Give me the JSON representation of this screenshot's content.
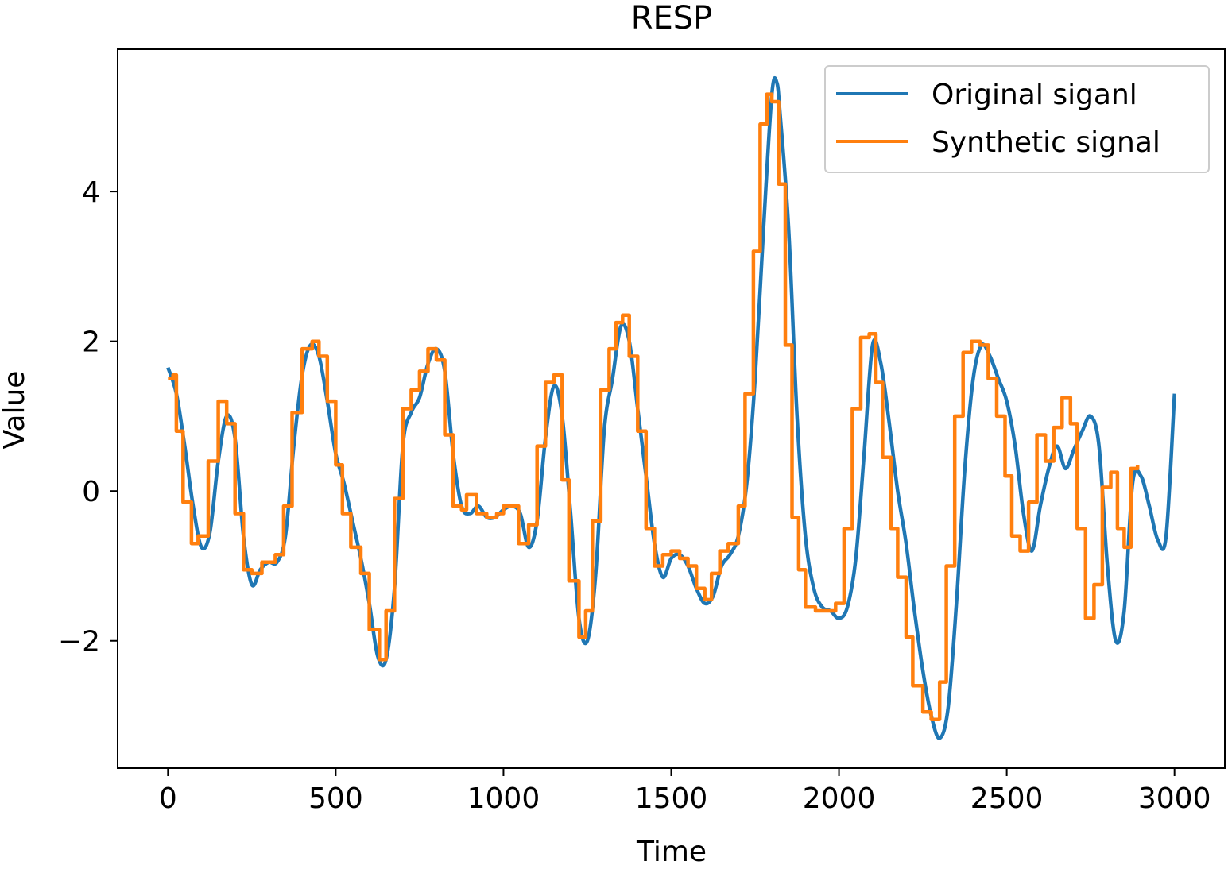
{
  "chart_data": {
    "type": "line",
    "title": "RESP",
    "xlabel": "Time",
    "ylabel": "Value",
    "xlim": [
      -150,
      3150
    ],
    "ylim": [
      -3.7,
      5.9
    ],
    "xticks": [
      0,
      500,
      1000,
      1500,
      2000,
      2500,
      3000
    ],
    "yticks": [
      -2,
      0,
      2,
      4
    ],
    "grid": false,
    "legend": "top-right",
    "series": [
      {
        "name": "Original siganl",
        "color": "#1f77b4",
        "style": "smooth",
        "points": [
          [
            0,
            1.65
          ],
          [
            25,
            1.3
          ],
          [
            50,
            0.6
          ],
          [
            75,
            -0.2
          ],
          [
            100,
            -0.75
          ],
          [
            125,
            -0.55
          ],
          [
            150,
            0.4
          ],
          [
            175,
            1.0
          ],
          [
            200,
            0.7
          ],
          [
            225,
            -0.6
          ],
          [
            250,
            -1.25
          ],
          [
            275,
            -1.05
          ],
          [
            300,
            -0.95
          ],
          [
            325,
            -0.95
          ],
          [
            350,
            -0.6
          ],
          [
            375,
            0.6
          ],
          [
            400,
            1.55
          ],
          [
            425,
            1.95
          ],
          [
            450,
            1.8
          ],
          [
            475,
            1.2
          ],
          [
            500,
            0.5
          ],
          [
            525,
            0.1
          ],
          [
            550,
            -0.4
          ],
          [
            575,
            -0.9
          ],
          [
            600,
            -1.5
          ],
          [
            625,
            -2.2
          ],
          [
            650,
            -2.25
          ],
          [
            675,
            -1.3
          ],
          [
            700,
            0.6
          ],
          [
            725,
            1.05
          ],
          [
            750,
            1.25
          ],
          [
            775,
            1.7
          ],
          [
            800,
            1.9
          ],
          [
            825,
            1.6
          ],
          [
            850,
            0.5
          ],
          [
            875,
            -0.2
          ],
          [
            900,
            -0.3
          ],
          [
            925,
            -0.2
          ],
          [
            950,
            -0.35
          ],
          [
            975,
            -0.35
          ],
          [
            1000,
            -0.25
          ],
          [
            1025,
            -0.2
          ],
          [
            1050,
            -0.3
          ],
          [
            1075,
            -0.75
          ],
          [
            1100,
            -0.4
          ],
          [
            1125,
            0.7
          ],
          [
            1150,
            1.4
          ],
          [
            1175,
            1.0
          ],
          [
            1200,
            -0.3
          ],
          [
            1225,
            -1.7
          ],
          [
            1250,
            -2.0
          ],
          [
            1275,
            -1.1
          ],
          [
            1300,
            0.8
          ],
          [
            1325,
            1.5
          ],
          [
            1350,
            2.2
          ],
          [
            1375,
            2.0
          ],
          [
            1400,
            1.1
          ],
          [
            1425,
            0.2
          ],
          [
            1450,
            -0.7
          ],
          [
            1475,
            -1.15
          ],
          [
            1500,
            -0.9
          ],
          [
            1525,
            -0.85
          ],
          [
            1550,
            -1.0
          ],
          [
            1575,
            -1.3
          ],
          [
            1600,
            -1.5
          ],
          [
            1625,
            -1.4
          ],
          [
            1650,
            -1.0
          ],
          [
            1675,
            -0.85
          ],
          [
            1700,
            -0.6
          ],
          [
            1725,
            0.1
          ],
          [
            1750,
            1.5
          ],
          [
            1775,
            3.5
          ],
          [
            1800,
            5.3
          ],
          [
            1815,
            5.45
          ],
          [
            1825,
            5.0
          ],
          [
            1850,
            3.5
          ],
          [
            1875,
            1.0
          ],
          [
            1900,
            -0.6
          ],
          [
            1925,
            -1.3
          ],
          [
            1950,
            -1.55
          ],
          [
            1975,
            -1.6
          ],
          [
            2000,
            -1.7
          ],
          [
            2025,
            -1.55
          ],
          [
            2050,
            -0.9
          ],
          [
            2075,
            0.5
          ],
          [
            2100,
            1.95
          ],
          [
            2125,
            1.7
          ],
          [
            2150,
            0.9
          ],
          [
            2175,
            0.0
          ],
          [
            2200,
            -0.7
          ],
          [
            2225,
            -1.6
          ],
          [
            2250,
            -2.4
          ],
          [
            2275,
            -3.0
          ],
          [
            2300,
            -3.3
          ],
          [
            2325,
            -2.9
          ],
          [
            2350,
            -1.5
          ],
          [
            2375,
            0.3
          ],
          [
            2400,
            1.5
          ],
          [
            2425,
            1.95
          ],
          [
            2450,
            1.8
          ],
          [
            2475,
            1.5
          ],
          [
            2500,
            1.2
          ],
          [
            2525,
            0.6
          ],
          [
            2550,
            -0.3
          ],
          [
            2575,
            -0.8
          ],
          [
            2600,
            -0.2
          ],
          [
            2625,
            0.3
          ],
          [
            2650,
            0.6
          ],
          [
            2675,
            0.3
          ],
          [
            2700,
            0.55
          ],
          [
            2725,
            0.8
          ],
          [
            2750,
            1.0
          ],
          [
            2775,
            0.6
          ],
          [
            2800,
            -1.0
          ],
          [
            2825,
            -2.0
          ],
          [
            2850,
            -1.6
          ],
          [
            2875,
            0.1
          ],
          [
            2900,
            0.2
          ],
          [
            2925,
            -0.2
          ],
          [
            2950,
            -0.65
          ],
          [
            2975,
            -0.6
          ],
          [
            3000,
            1.3
          ]
        ]
      },
      {
        "name": "Synthetic signal",
        "color": "#ff7f0e",
        "style": "step",
        "points": [
          [
            0,
            1.5
          ],
          [
            15,
            1.55
          ],
          [
            25,
            0.8
          ],
          [
            45,
            -0.15
          ],
          [
            70,
            -0.7
          ],
          [
            90,
            -0.6
          ],
          [
            120,
            0.4
          ],
          [
            150,
            1.2
          ],
          [
            175,
            0.9
          ],
          [
            200,
            -0.3
          ],
          [
            225,
            -1.05
          ],
          [
            250,
            -1.1
          ],
          [
            280,
            -0.95
          ],
          [
            320,
            -0.85
          ],
          [
            345,
            -0.2
          ],
          [
            370,
            1.05
          ],
          [
            400,
            1.9
          ],
          [
            430,
            2.0
          ],
          [
            450,
            1.8
          ],
          [
            475,
            1.2
          ],
          [
            500,
            0.35
          ],
          [
            520,
            -0.3
          ],
          [
            545,
            -0.75
          ],
          [
            575,
            -1.1
          ],
          [
            600,
            -1.85
          ],
          [
            630,
            -2.25
          ],
          [
            650,
            -1.6
          ],
          [
            675,
            -0.1
          ],
          [
            700,
            1.1
          ],
          [
            725,
            1.35
          ],
          [
            750,
            1.6
          ],
          [
            775,
            1.9
          ],
          [
            800,
            1.75
          ],
          [
            825,
            0.75
          ],
          [
            850,
            -0.2
          ],
          [
            875,
            -0.25
          ],
          [
            890,
            -0.05
          ],
          [
            920,
            -0.3
          ],
          [
            950,
            -0.35
          ],
          [
            980,
            -0.3
          ],
          [
            1000,
            -0.2
          ],
          [
            1030,
            -0.2
          ],
          [
            1045,
            -0.7
          ],
          [
            1075,
            -0.45
          ],
          [
            1100,
            0.6
          ],
          [
            1125,
            1.45
          ],
          [
            1150,
            1.55
          ],
          [
            1175,
            0.15
          ],
          [
            1195,
            -1.2
          ],
          [
            1225,
            -1.95
          ],
          [
            1245,
            -1.6
          ],
          [
            1265,
            -0.4
          ],
          [
            1290,
            1.35
          ],
          [
            1315,
            1.9
          ],
          [
            1335,
            2.25
          ],
          [
            1355,
            2.35
          ],
          [
            1375,
            1.8
          ],
          [
            1400,
            0.8
          ],
          [
            1425,
            -0.5
          ],
          [
            1450,
            -1.0
          ],
          [
            1475,
            -0.85
          ],
          [
            1500,
            -0.8
          ],
          [
            1525,
            -0.9
          ],
          [
            1550,
            -1.0
          ],
          [
            1575,
            -1.3
          ],
          [
            1600,
            -1.45
          ],
          [
            1620,
            -1.1
          ],
          [
            1645,
            -0.8
          ],
          [
            1670,
            -0.7
          ],
          [
            1700,
            -0.2
          ],
          [
            1720,
            1.3
          ],
          [
            1745,
            3.2
          ],
          [
            1765,
            4.9
          ],
          [
            1785,
            5.3
          ],
          [
            1800,
            5.2
          ],
          [
            1820,
            4.1
          ],
          [
            1840,
            1.95
          ],
          [
            1860,
            -0.35
          ],
          [
            1880,
            -1.05
          ],
          [
            1900,
            -1.55
          ],
          [
            1930,
            -1.6
          ],
          [
            1960,
            -1.6
          ],
          [
            1990,
            -1.5
          ],
          [
            2015,
            -0.5
          ],
          [
            2040,
            1.1
          ],
          [
            2065,
            2.05
          ],
          [
            2090,
            2.1
          ],
          [
            2110,
            1.45
          ],
          [
            2130,
            0.45
          ],
          [
            2155,
            -0.5
          ],
          [
            2175,
            -1.15
          ],
          [
            2200,
            -1.95
          ],
          [
            2220,
            -2.6
          ],
          [
            2250,
            -2.95
          ],
          [
            2275,
            -3.05
          ],
          [
            2300,
            -2.55
          ],
          [
            2320,
            -1.0
          ],
          [
            2345,
            1.0
          ],
          [
            2370,
            1.85
          ],
          [
            2395,
            2.0
          ],
          [
            2420,
            1.95
          ],
          [
            2445,
            1.5
          ],
          [
            2470,
            1.0
          ],
          [
            2495,
            0.2
          ],
          [
            2515,
            -0.6
          ],
          [
            2540,
            -0.8
          ],
          [
            2565,
            -0.15
          ],
          [
            2590,
            0.75
          ],
          [
            2615,
            0.4
          ],
          [
            2640,
            0.85
          ],
          [
            2665,
            1.25
          ],
          [
            2690,
            0.9
          ],
          [
            2710,
            -0.5
          ],
          [
            2735,
            -1.7
          ],
          [
            2760,
            -1.25
          ],
          [
            2785,
            0.05
          ],
          [
            2810,
            0.25
          ],
          [
            2830,
            -0.5
          ],
          [
            2850,
            -0.75
          ],
          [
            2870,
            0.3
          ],
          [
            2890,
            0.35
          ]
        ]
      }
    ]
  }
}
